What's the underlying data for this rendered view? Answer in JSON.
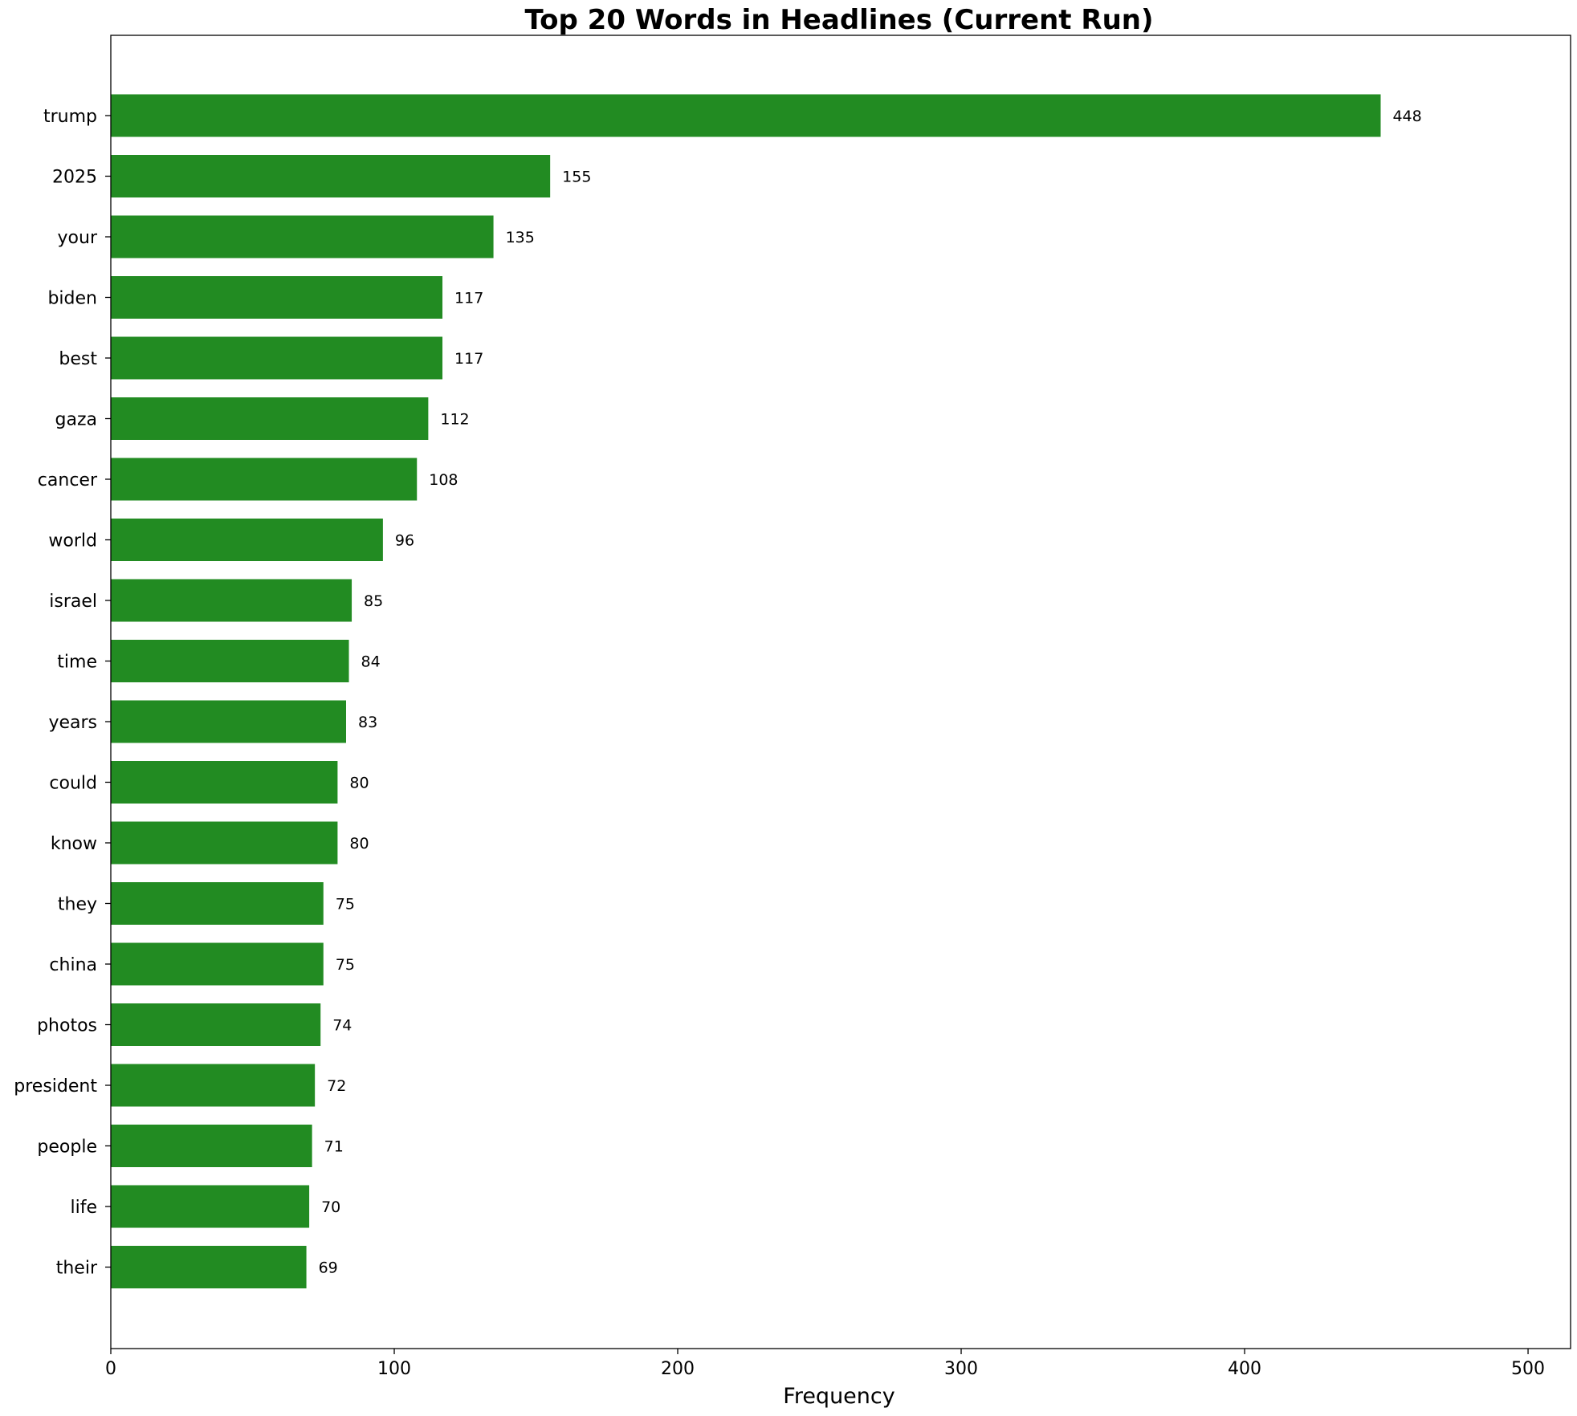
{
  "chart_data": {
    "type": "bar",
    "orientation": "horizontal",
    "title": "Top 20 Words in Headlines (Current Run)",
    "xlabel": "Frequency",
    "ylabel": "",
    "xlim": [
      0,
      515
    ],
    "xticks": [
      0,
      100,
      200,
      300,
      400,
      500
    ],
    "bar_color": "#228b22",
    "grid": false,
    "data_labels": true,
    "categories": [
      "trump",
      "2025",
      "your",
      "biden",
      "best",
      "gaza",
      "cancer",
      "world",
      "israel",
      "time",
      "years",
      "could",
      "know",
      "they",
      "china",
      "photos",
      "president",
      "people",
      "life",
      "their"
    ],
    "values": [
      448,
      155,
      135,
      117,
      117,
      112,
      108,
      96,
      85,
      84,
      83,
      80,
      80,
      75,
      75,
      74,
      72,
      71,
      70,
      69
    ]
  }
}
